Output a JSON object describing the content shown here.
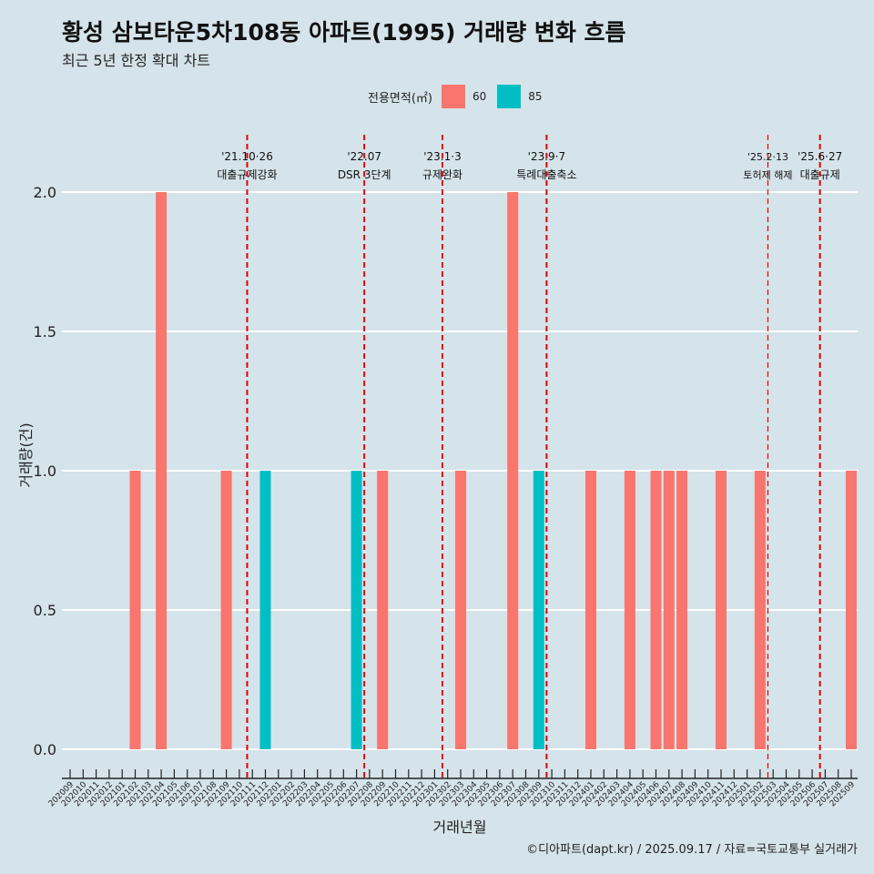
{
  "header": {
    "title": "황성 삼보타운5차108동 아파트(1995) 거래량 변화 흐름",
    "subtitle": "최근 5년 한정 확대 차트"
  },
  "legend": {
    "title": "전용면적(㎡)",
    "items": [
      {
        "label": "60",
        "color": "#f8766d"
      },
      {
        "label": "85",
        "color": "#00bfc4"
      }
    ]
  },
  "caption": "©디아파트(dapt.kr) / 2025.09.17 / 자료=국토교통부 실거래가",
  "chart_data": {
    "type": "bar",
    "xlabel": "거래년월",
    "ylabel": "거래량(건)",
    "ylim": [
      0,
      2.0
    ],
    "yticks": [
      "0.0",
      "0.5",
      "1.0",
      "1.5",
      "2.0"
    ],
    "categories": [
      "202009",
      "202010",
      "202011",
      "202012",
      "202101",
      "202102",
      "202103",
      "202104",
      "202105",
      "202106",
      "202107",
      "202108",
      "202109",
      "202110",
      "202111",
      "202112",
      "202201",
      "202202",
      "202203",
      "202204",
      "202205",
      "202206",
      "202207",
      "202208",
      "202209",
      "202210",
      "202211",
      "202212",
      "202301",
      "202302",
      "202303",
      "202304",
      "202305",
      "202306",
      "202307",
      "202308",
      "202309",
      "202310",
      "202311",
      "202312",
      "202401",
      "202402",
      "202403",
      "202404",
      "202405",
      "202406",
      "202407",
      "202408",
      "202409",
      "202410",
      "202411",
      "202412",
      "202501",
      "202502",
      "202503",
      "202504",
      "202505",
      "202506",
      "202507",
      "202508",
      "202509"
    ],
    "bars": [
      {
        "x": "202102",
        "area": "60",
        "value": 1
      },
      {
        "x": "202104",
        "area": "60",
        "value": 2
      },
      {
        "x": "202109",
        "area": "60",
        "value": 1
      },
      {
        "x": "202112",
        "area": "85",
        "value": 1
      },
      {
        "x": "202207",
        "area": "85",
        "value": 1
      },
      {
        "x": "202209",
        "area": "60",
        "value": 1
      },
      {
        "x": "202303",
        "area": "60",
        "value": 1
      },
      {
        "x": "202307",
        "area": "60",
        "value": 2
      },
      {
        "x": "202309",
        "area": "85",
        "value": 1
      },
      {
        "x": "202401",
        "area": "60",
        "value": 1
      },
      {
        "x": "202404",
        "area": "60",
        "value": 1
      },
      {
        "x": "202406",
        "area": "60",
        "value": 1
      },
      {
        "x": "202407",
        "area": "60",
        "value": 1
      },
      {
        "x": "202408",
        "area": "60",
        "value": 1
      },
      {
        "x": "202411",
        "area": "60",
        "value": 1
      },
      {
        "x": "202502",
        "area": "60",
        "value": 1
      },
      {
        "x": "202509",
        "area": "60",
        "value": 1
      }
    ],
    "events": [
      {
        "x": "202111",
        "date": "'21.10·26",
        "label": "대출규제강화"
      },
      {
        "x": "202208",
        "date": "'22.07",
        "label": "DSR 3단계"
      },
      {
        "x": "202302",
        "date": "'23.1·3",
        "label": "규제완화"
      },
      {
        "x": "202310",
        "date": "'23.9·7",
        "label": "특례대출축소"
      },
      {
        "x": "202503",
        "date": "'25.2·13",
        "label": "토허제 해제"
      },
      {
        "x": "202507",
        "date": "'25.6·27",
        "label": "대출규제"
      }
    ],
    "event_line_color": "#e00000"
  }
}
